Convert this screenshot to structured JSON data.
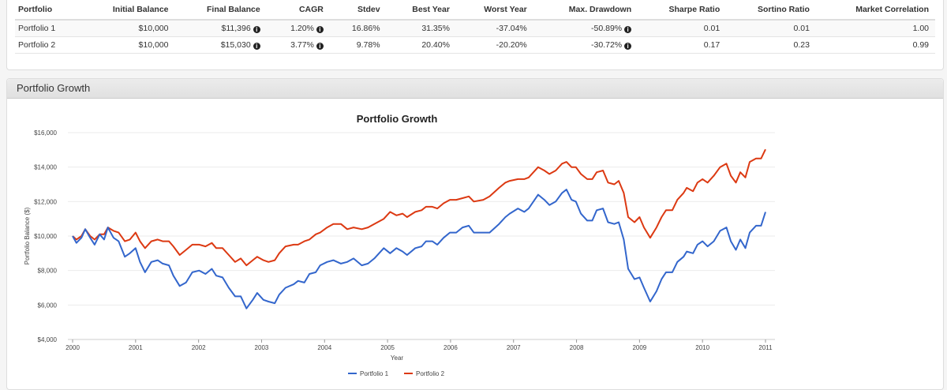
{
  "stats": {
    "headers": [
      "Portfolio",
      "Initial Balance",
      "Final Balance",
      "CAGR",
      "Stdev",
      "Best Year",
      "Worst Year",
      "Max. Drawdown",
      "Sharpe Ratio",
      "Sortino Ratio",
      "Market Correlation"
    ],
    "rows": [
      [
        "Portfolio 1",
        "$10,000",
        "$11,396",
        "1.20%",
        "16.86%",
        "31.35%",
        "-37.04%",
        "-50.89%",
        "0.01",
        "0.01",
        "1.00"
      ],
      [
        "Portfolio 2",
        "$10,000",
        "$15,030",
        "3.77%",
        "9.78%",
        "20.40%",
        "-20.20%",
        "-30.72%",
        "0.17",
        "0.23",
        "0.99"
      ]
    ],
    "info_icon": "info-circle-icon"
  },
  "panel_title": "Portfolio Growth",
  "colors": {
    "p1": "#3366cc",
    "p2": "#dc3912"
  },
  "chart_data": {
    "type": "line",
    "title": "Portfolio Growth",
    "xlabel": "Year",
    "ylabel": "Portfolio Balance ($)",
    "ylim": [
      4000,
      16000
    ],
    "xlim": [
      2000,
      2011
    ],
    "yticks": [
      "$4,000",
      "$6,000",
      "$8,000",
      "$10,000",
      "$12,000",
      "$14,000",
      "$16,000"
    ],
    "ytick_values": [
      4000,
      6000,
      8000,
      10000,
      12000,
      14000,
      16000
    ],
    "xticks": [
      "2000",
      "2001",
      "2002",
      "2003",
      "2004",
      "2005",
      "2006",
      "2007",
      "2008",
      "2009",
      "2010",
      "2011"
    ],
    "grid": true,
    "legend_position": "bottom",
    "x": [
      2000,
      2000.06,
      2000.14,
      2000.2,
      2000.28,
      2000.35,
      2000.43,
      2000.5,
      2000.56,
      2000.65,
      2000.73,
      2000.83,
      2000.91,
      2001,
      2001.07,
      2001.15,
      2001.25,
      2001.35,
      2001.43,
      2001.53,
      2001.6,
      2001.7,
      2001.8,
      2001.9,
      2002.01,
      2002.11,
      2002.21,
      2002.28,
      2002.38,
      2002.48,
      2002.58,
      2002.67,
      2002.76,
      2002.86,
      2002.93,
      2003.03,
      2003.11,
      2003.21,
      2003.28,
      2003.38,
      2003.51,
      2003.58,
      2003.68,
      2003.76,
      2003.86,
      2003.93,
      2004.04,
      2004.14,
      2004.26,
      2004.36,
      2004.46,
      2004.59,
      2004.69,
      2004.79,
      2004.94,
      2005.04,
      2005.14,
      2005.24,
      2005.31,
      2005.44,
      2005.54,
      2005.61,
      2005.71,
      2005.79,
      2005.89,
      2005.99,
      2006.09,
      2006.19,
      2006.29,
      2006.37,
      2006.52,
      2006.62,
      2006.77,
      2006.87,
      2006.94,
      2007.07,
      2007.17,
      2007.24,
      2007.39,
      2007.49,
      2007.57,
      2007.67,
      2007.77,
      2007.84,
      2007.92,
      2007.99,
      2008.07,
      2008.17,
      2008.25,
      2008.32,
      2008.42,
      2008.5,
      2008.6,
      2008.67,
      2008.75,
      2008.82,
      2008.92,
      2009,
      2009.07,
      2009.17,
      2009.27,
      2009.35,
      2009.42,
      2009.52,
      2009.6,
      2009.7,
      2009.75,
      2009.85,
      2009.92,
      2010,
      2010.08,
      2010.18,
      2010.28,
      2010.38,
      2010.45,
      2010.53,
      2010.6,
      2010.68,
      2010.75,
      2010.85,
      2010.93,
      2011
    ],
    "series": [
      {
        "name": "Portfolio 1",
        "values": [
          10000,
          9600,
          9900,
          10400,
          9900,
          9500,
          10100,
          9800,
          10500,
          9900,
          9700,
          8800,
          9000,
          9300,
          8500,
          7900,
          8500,
          8600,
          8400,
          8300,
          7700,
          7100,
          7300,
          7900,
          8000,
          7800,
          8100,
          7700,
          7600,
          7000,
          6500,
          6500,
          5800,
          6300,
          6700,
          6300,
          6200,
          6100,
          6600,
          7000,
          7200,
          7400,
          7300,
          7800,
          7900,
          8300,
          8500,
          8600,
          8400,
          8500,
          8700,
          8300,
          8400,
          8700,
          9300,
          9000,
          9300,
          9100,
          8900,
          9300,
          9400,
          9700,
          9700,
          9500,
          9900,
          10200,
          10200,
          10500,
          10600,
          10200,
          10200,
          10200,
          10700,
          11100,
          11300,
          11600,
          11400,
          11600,
          12400,
          12100,
          11800,
          12000,
          12500,
          12700,
          12100,
          12000,
          11300,
          10900,
          10900,
          11500,
          11600,
          10800,
          10700,
          10800,
          9800,
          8100,
          7500,
          7600,
          7000,
          6200,
          6800,
          7500,
          7900,
          7900,
          8500,
          8800,
          9100,
          9000,
          9500,
          9700,
          9400,
          9700,
          10300,
          10500,
          9700,
          9200,
          9800,
          9300,
          10200,
          10600,
          10600,
          11396
        ]
      },
      {
        "name": "Portfolio 2",
        "values": [
          10000,
          9800,
          10000,
          10400,
          10000,
          9800,
          10100,
          10100,
          10500,
          10300,
          10200,
          9700,
          9800,
          10200,
          9700,
          9300,
          9700,
          9800,
          9700,
          9700,
          9400,
          8900,
          9200,
          9500,
          9500,
          9400,
          9600,
          9300,
          9300,
          8900,
          8500,
          8700,
          8300,
          8600,
          8800,
          8600,
          8500,
          8600,
          9000,
          9400,
          9500,
          9500,
          9700,
          9800,
          10100,
          10200,
          10500,
          10700,
          10700,
          10400,
          10500,
          10400,
          10500,
          10700,
          11000,
          11400,
          11200,
          11300,
          11100,
          11400,
          11500,
          11700,
          11700,
          11600,
          11900,
          12100,
          12100,
          12200,
          12300,
          12000,
          12100,
          12300,
          12800,
          13100,
          13200,
          13300,
          13300,
          13400,
          14000,
          13800,
          13600,
          13800,
          14200,
          14300,
          14000,
          14000,
          13600,
          13300,
          13300,
          13700,
          13800,
          13100,
          13000,
          13200,
          12500,
          11100,
          10800,
          11100,
          10500,
          9900,
          10500,
          11100,
          11500,
          11500,
          12100,
          12500,
          12800,
          12600,
          13100,
          13300,
          13100,
          13500,
          14000,
          14200,
          13500,
          13100,
          13700,
          13400,
          14300,
          14500,
          14500,
          15030
        ]
      }
    ]
  }
}
